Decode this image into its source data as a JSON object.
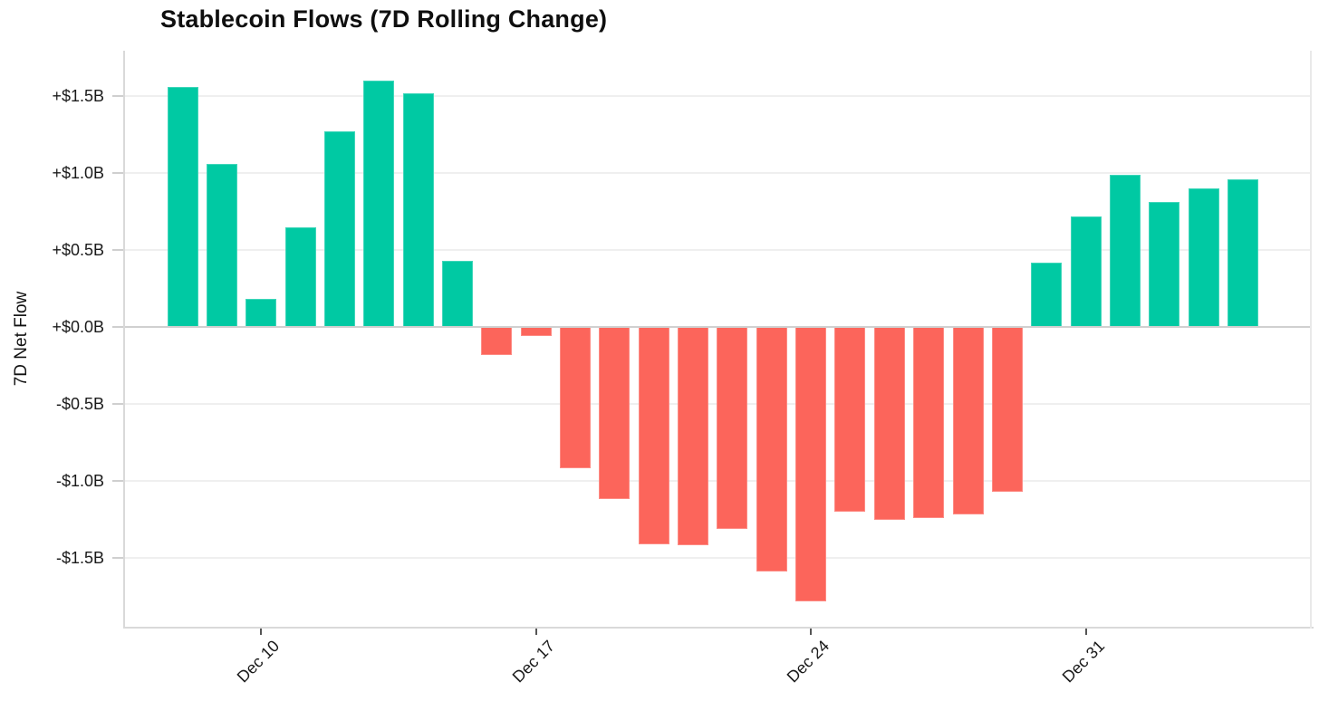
{
  "title": "Stablecoin Flows (7D Rolling Change)",
  "y_axis_title": "7D Net Flow",
  "colors": {
    "positive_bar": "#00C9A3",
    "negative_bar": "#FC655B",
    "gridline": "#EFEFEF",
    "zero_line": "#D0D0D0",
    "axis_spine": "#D9D9D9",
    "text": "#1A1A1A"
  },
  "chart_data": {
    "type": "bar",
    "title": "Stablecoin Flows (7D Rolling Change)",
    "xlabel": "",
    "ylabel": "7D Net Flow",
    "unit": "billions USD",
    "grid": true,
    "legend": null,
    "ylim": [
      -1.95,
      1.78
    ],
    "categories": [
      "Dec 8",
      "Dec 9",
      "Dec 10",
      "Dec 11",
      "Dec 12",
      "Dec 13",
      "Dec 14",
      "Dec 15",
      "Dec 16",
      "Dec 17",
      "Dec 18",
      "Dec 19",
      "Dec 20",
      "Dec 21",
      "Dec 22",
      "Dec 23",
      "Dec 24",
      "Dec 25",
      "Dec 26",
      "Dec 27",
      "Dec 28",
      "Dec 29",
      "Dec 30",
      "Dec 31",
      "Jan 1",
      "Jan 2",
      "Jan 3",
      "Jan 4"
    ],
    "values": [
      1.56,
      1.06,
      0.18,
      0.65,
      1.27,
      1.6,
      1.52,
      0.43,
      -0.18,
      -0.06,
      -0.92,
      -1.12,
      -1.41,
      -1.42,
      -1.31,
      -1.59,
      -1.78,
      -1.2,
      -1.25,
      -1.24,
      -1.22,
      -1.07,
      0.42,
      0.72,
      0.99,
      0.81,
      0.9,
      0.96
    ],
    "positive_color": "#00C9A3",
    "negative_color": "#FC655B",
    "x_tick_labels": [
      "Dec 10",
      "Dec 17",
      "Dec 24",
      "Dec 31"
    ],
    "x_tick_indices": [
      2,
      9,
      16,
      23
    ],
    "x_tick_rotation_deg": 45,
    "y_tick_labels": [
      "+$1.5B",
      "+$1.0B",
      "+$0.5B",
      "+$0.0B",
      "-$0.5B",
      "-$1.0B",
      "-$1.5B"
    ],
    "y_tick_values": [
      1.5,
      1.0,
      0.5,
      0.0,
      -0.5,
      -1.0,
      -1.5
    ]
  }
}
